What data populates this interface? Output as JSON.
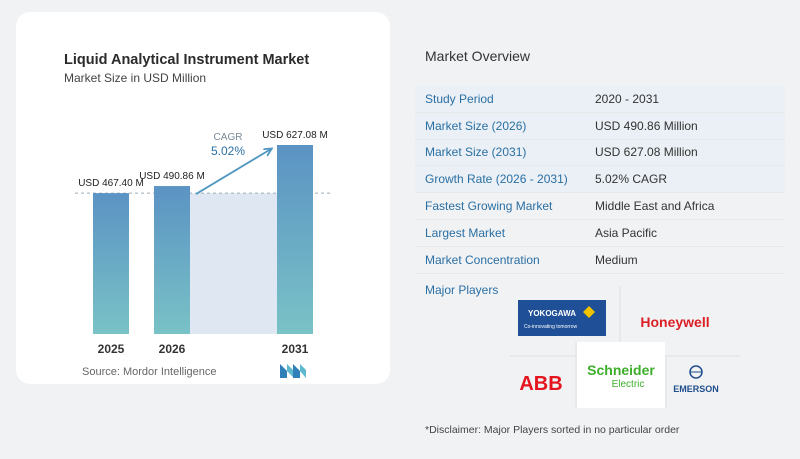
{
  "left_panel": {
    "title": "Liquid Analytical Instrument Market",
    "subtitle": "Market Size in USD Million",
    "source": "Source:  Mordor Intelligence",
    "cagr_label": "CAGR",
    "cagr_value": "5.02%"
  },
  "chart_data": {
    "type": "bar",
    "title": "Liquid Analytical Instrument Market",
    "subtitle": "Market Size in USD Million",
    "categories": [
      "2025",
      "2026",
      "2031"
    ],
    "values": [
      467.4,
      490.86,
      627.08
    ],
    "data_labels": [
      "USD 467.40 M",
      "USD 490.86 M",
      "USD 627.08 M"
    ],
    "ylim": [
      0,
      627.08
    ],
    "annotation": {
      "label": "CAGR",
      "value": "5.02%"
    },
    "colors": {
      "bar_top": "#5b93c4",
      "bar_bottom": "#79c2c6",
      "area": "#dfe8f2",
      "arrow": "#4f97c1",
      "cagr_text": "#2a6fa3",
      "dashed": "#9dacb8"
    }
  },
  "overview": {
    "title": "Market Overview",
    "rows": [
      {
        "label": "Study Period",
        "value": "2020 - 2031"
      },
      {
        "label": "Market Size (2026)",
        "value": "USD 490.86 Million"
      },
      {
        "label": "Market Size (2031)",
        "value": "USD 627.08 Million"
      },
      {
        "label": "Growth Rate (2026 - 2031)",
        "value": "5.02% CAGR"
      },
      {
        "label": "Fastest Growing Market",
        "value": "Middle East and Africa"
      },
      {
        "label": "Largest Market",
        "value": "Asia Pacific"
      },
      {
        "label": "Market Concentration",
        "value": "Medium"
      }
    ],
    "players_label": "Major Players"
  },
  "players": {
    "yokogawa": {
      "name": "YOKOGAWA",
      "tagline": "Co-innovating tomorrow",
      "color": "#1f4f96"
    },
    "honeywell": {
      "name": "Honeywell",
      "color": "#dc2027"
    },
    "abb": {
      "name": "ABB",
      "color": "#e4151f"
    },
    "schneider": {
      "name": "Schneider",
      "sub": "Electric",
      "color": "#3dae2b"
    },
    "emerson": {
      "name": "EMERSON",
      "color": "#1f4e8c"
    }
  },
  "disclaimer": "*Disclaimer: Major Players sorted in no particular order"
}
